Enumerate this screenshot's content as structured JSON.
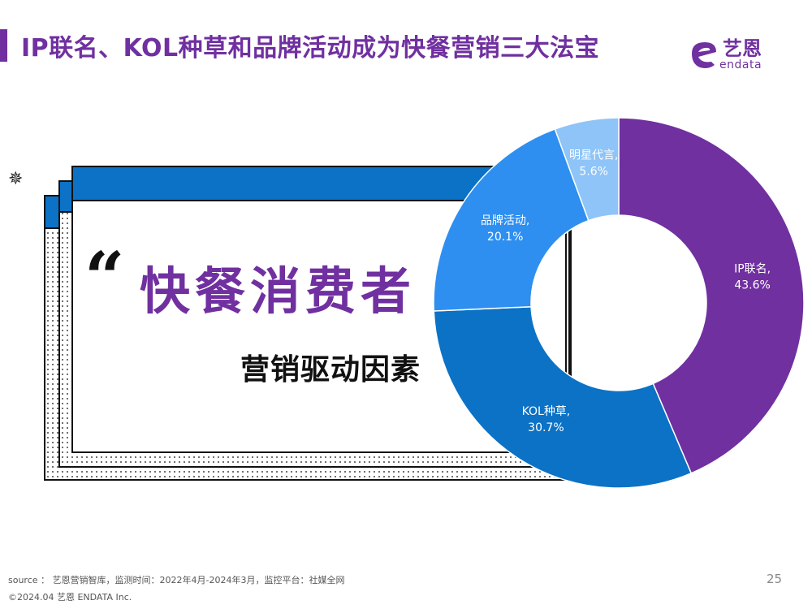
{
  "header": {
    "title": "IP联名、KOL种草和品牌活动成为快餐营销三大法宝",
    "accent_color": "#7030a0"
  },
  "logo": {
    "name_cn": "艺恩",
    "name_en": "endata"
  },
  "panel": {
    "quote_mark": "“",
    "headline": "快餐消费者",
    "subheadline": "营销驱动因素",
    "icon": "gear-icon"
  },
  "chart_data": {
    "type": "pie",
    "style": "donut",
    "title": "",
    "slices": [
      {
        "name": "IP联名",
        "value": 43.6,
        "label": "IP联名,",
        "pct_label": "43.6%",
        "color": "#7030a0",
        "text_color": "#ffffff"
      },
      {
        "name": "KOL种草",
        "value": 30.7,
        "label": "KOL种草,",
        "pct_label": "30.7%",
        "color": "#0b72c6",
        "text_color": "#ffffff"
      },
      {
        "name": "品牌活动",
        "value": 20.1,
        "label": "品牌活动,",
        "pct_label": "20.1%",
        "color": "#2e8ff0",
        "text_color": "#ffffff"
      },
      {
        "name": "明星代言",
        "value": 5.6,
        "label": "明星代言,",
        "pct_label": "5.6%",
        "color": "#8ec4f7",
        "text_color": "#ffffff"
      }
    ],
    "start_angle_deg": 0,
    "direction": "clockwise",
    "legend": "none"
  },
  "footer": {
    "source": "source ： 艺恩营销智库，监测时间：2022年4月-2024年3月，监控平台：社媒全网",
    "copyright": "©2024.04  艺恩 ENDATA Inc.",
    "page_number": "25"
  }
}
